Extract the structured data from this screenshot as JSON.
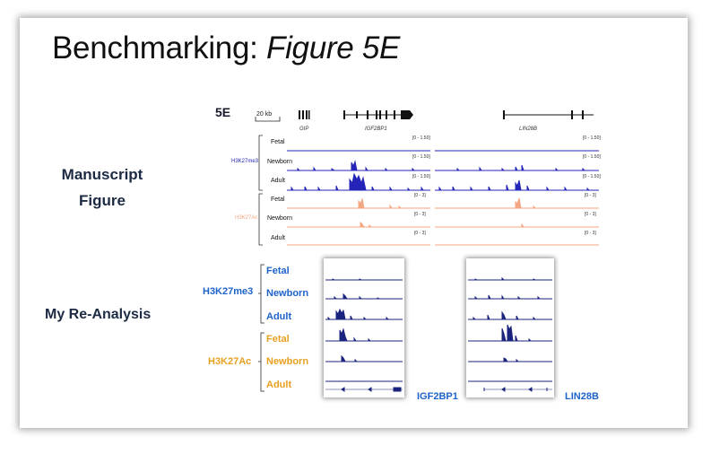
{
  "slide": {
    "title_plain": "Benchmarking: ",
    "title_italic": "Figure 5E",
    "manuscript_label_line1": "Manuscript",
    "manuscript_label_line2": "Figure",
    "reanalysis_label": "My Re-Analysis"
  },
  "figure": {
    "panel_label": "5E",
    "scale_label": "20 kb",
    "genes": [
      "GIP",
      "IGF2BP1",
      "LIN28B"
    ],
    "h3k27me3": {
      "mark": "H3K27me3",
      "color": "#2424b8",
      "rows": [
        "Fetal",
        "Newborn",
        "Adult"
      ],
      "range": "[0 - 1.50]"
    },
    "h3k27ac": {
      "mark": "H3K27Ac",
      "color": "#f4a582",
      "rows": [
        "Fetal",
        "Newborn",
        "Adult"
      ],
      "range": "[0 - 3]"
    }
  },
  "reanalysis": {
    "h3k27me3": {
      "mark": "H3K27me3",
      "color": "#1e63c9",
      "rows": [
        "Fetal",
        "Newborn",
        "Adult"
      ]
    },
    "h3k27ac": {
      "mark": "H3K27Ac",
      "color": "#e8a020",
      "rows": [
        "Fetal",
        "Newborn",
        "Adult"
      ]
    },
    "gene_left": "IGF2BP1",
    "gene_right": "LIN28B",
    "track_color": "#1a237e"
  }
}
